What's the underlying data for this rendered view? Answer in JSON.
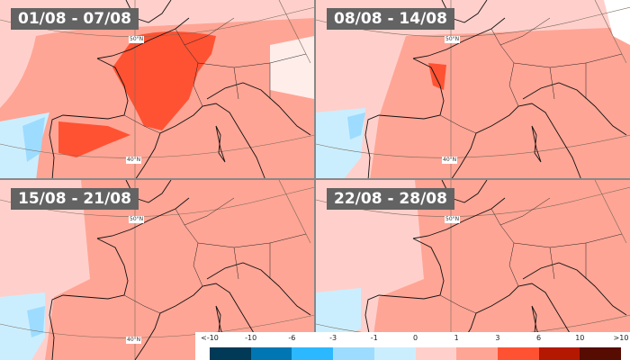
{
  "panels": [
    {
      "period": "01/08 - 07/08"
    },
    {
      "period": "08/08 - 14/08"
    },
    {
      "period": "15/08 - 21/08"
    },
    {
      "period": "22/08 - 28/08"
    }
  ],
  "latitude_labels": {
    "north": "50°N",
    "south": "40°N"
  },
  "legend": {
    "ticks": [
      "<-10",
      "-10",
      "-6",
      "-3",
      "-1",
      "0",
      "1",
      "3",
      "6",
      "10",
      ">10"
    ],
    "colors": [
      "#003a57",
      "#0077b3",
      "#2cb8ff",
      "#9ddcff",
      "#cbeeff",
      "#ffd0cb",
      "#ffa595",
      "#ff5233",
      "#b51800",
      "#560c00"
    ]
  }
}
